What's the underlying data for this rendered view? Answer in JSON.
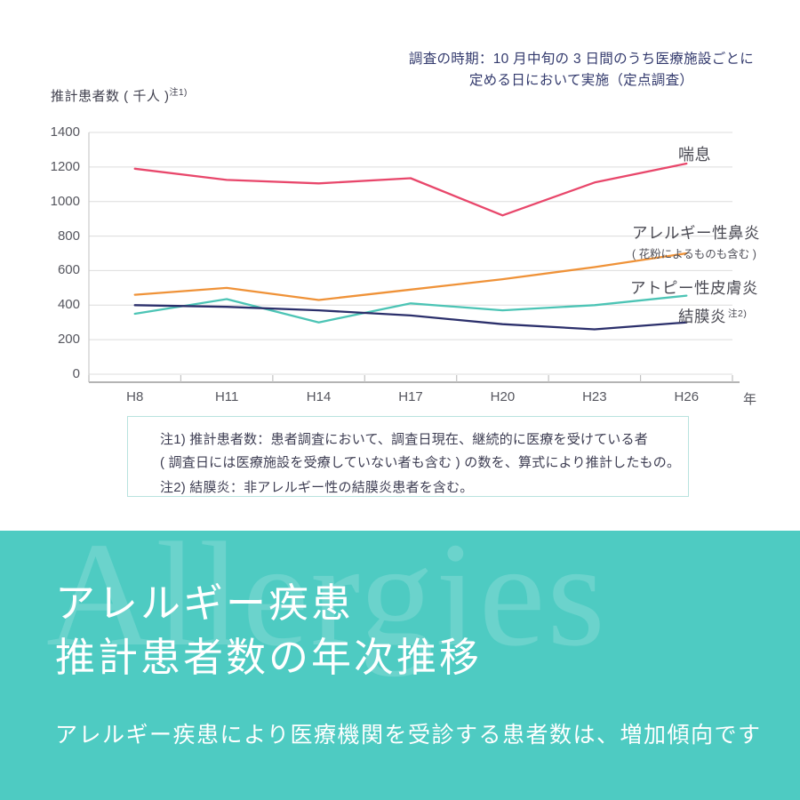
{
  "annotation": {
    "line1": "調査の時期：10 月中旬の 3 日間のうち医療施設ごとに",
    "line2": "定める日において実施（定点調査）"
  },
  "chart_data": {
    "type": "line",
    "ylabel": "推計患者数 ( 千人 )",
    "ylabel_note": "注1)",
    "xlabel": "年",
    "categories": [
      "H8",
      "H11",
      "H14",
      "H17",
      "H20",
      "H23",
      "H26"
    ],
    "ylim": [
      0,
      1400
    ],
    "yticks": [
      0,
      200,
      400,
      600,
      800,
      1000,
      1200,
      1400
    ],
    "grid": true,
    "legend_position": "right-of-lines",
    "series": [
      {
        "name": "喘息",
        "color": "#e8476b",
        "values": [
          1190,
          1125,
          1105,
          1135,
          920,
          1110,
          1220
        ]
      },
      {
        "name": "アレルギー性鼻炎",
        "name_note": "( 花粉によるものも含む )",
        "color": "#ef9238",
        "values": [
          460,
          500,
          430,
          490,
          550,
          620,
          700
        ]
      },
      {
        "name": "アトピー性皮膚炎",
        "color": "#4cc4b5",
        "values": [
          350,
          435,
          300,
          410,
          370,
          400,
          455
        ]
      },
      {
        "name": "結膜炎",
        "name_note": "注2)",
        "color": "#2b2f6b",
        "values": [
          400,
          390,
          370,
          340,
          290,
          260,
          300
        ]
      }
    ]
  },
  "notes": {
    "line1": "注1) 推計患者数：患者調査において、調査日現在、継続的に医療を受けている者",
    "line2": "( 調査日には医療施設を受療していない者も含む ) の数を、算式により推計したもの。",
    "line3": "注2) 結膜炎：非アレルギー性の結膜炎患者を含む。"
  },
  "banner": {
    "watermark": "Allergies",
    "title_line1": "アレルギー疾患",
    "title_line2": "推計患者数の年次推移",
    "subtitle": "アレルギー疾患により医療機関を受診する患者数は、増加傾向です",
    "bg_color": "#4ecbc2",
    "watermark_color": "rgba(255,255,255,0.17)",
    "text_color": "#ffffff"
  },
  "palette": {
    "gridline": "#dcdcdc",
    "axis_line": "#9b9b9b",
    "tick_mark": "#c2c2c2",
    "y_axis_line": "#cccccc"
  }
}
